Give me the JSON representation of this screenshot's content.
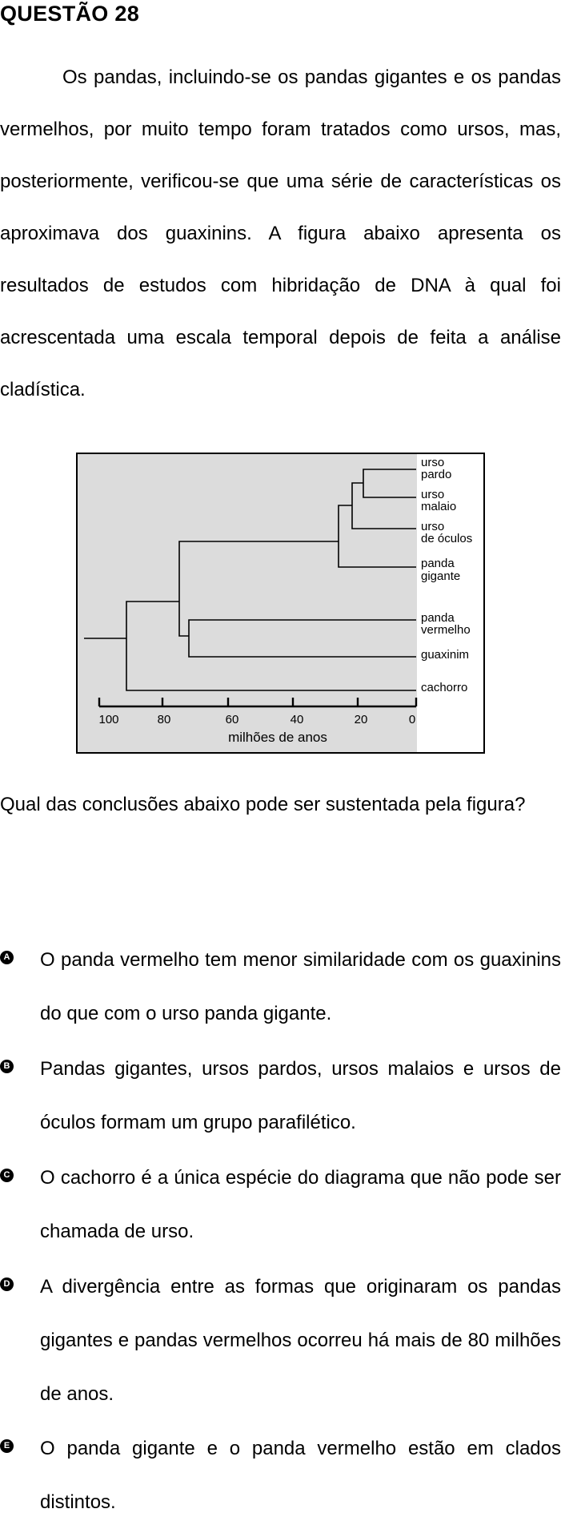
{
  "header": {
    "title": "QUESTÃO 28"
  },
  "stem": "Os pandas, incluindo-se os pandas gigantes e os pandas vermelhos, por muito tempo foram tratados como ursos, mas, posteriormente, verificou-se que uma série de características os aproximava dos guaxinins. A figura abaixo apresenta os resultados de estudos com hibridação de DNA à qual foi acrescentada uma escala temporal depois de feita a análise cladística.",
  "figure": {
    "leaves": [
      {
        "line1": "urso",
        "line2": "pardo"
      },
      {
        "line1": "urso",
        "line2": "malaio"
      },
      {
        "line1": "urso",
        "line2": "de óculos"
      },
      {
        "line1": "panda",
        "line2": "gigante"
      },
      {
        "line1": "panda",
        "line2": "vermelho"
      },
      {
        "line1": "guaxinim",
        "line2": ""
      },
      {
        "line1": "cachorro",
        "line2": ""
      }
    ],
    "axis_ticks": [
      "100",
      "80",
      "60",
      "40",
      "20",
      "0"
    ],
    "axis_label": "milhões de anos"
  },
  "question": "Qual das conclusões abaixo pode ser sustentada pela figura?",
  "options": [
    {
      "letter": "A",
      "text": "O panda vermelho tem menor similaridade com os guaxinins do que com o urso panda gigante."
    },
    {
      "letter": "B",
      "text": "Pandas gigantes, ursos pardos, ursos malaios e ursos de óculos formam um grupo parafilético."
    },
    {
      "letter": "C",
      "text": "O cachorro é a única espécie do diagrama que não pode ser chamada de urso."
    },
    {
      "letter": "D",
      "text": "A divergência entre as formas que originaram os pandas gigantes e pandas vermelhos ocorreu há mais de 80 milhões de anos."
    },
    {
      "letter": "E",
      "text": "O panda gigante e o panda vermelho estão em clados distintos."
    }
  ]
}
